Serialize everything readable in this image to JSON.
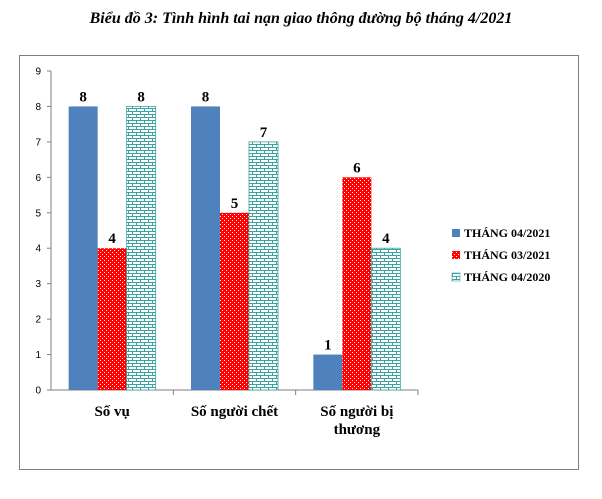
{
  "chart_data": {
    "type": "bar",
    "title": "Biểu đồ 3: Tình hình tai nạn giao thông đường bộ tháng 4/2021",
    "categories": [
      [
        "Số vụ"
      ],
      [
        "Số người chết"
      ],
      [
        "Số người bị",
        "thương"
      ]
    ],
    "series": [
      {
        "name": "THÁNG 04/2021",
        "values": [
          8,
          8,
          1
        ],
        "color": "#4f81bd",
        "pattern": "solid"
      },
      {
        "name": "THÁNG 03/2021",
        "values": [
          4,
          5,
          6
        ],
        "color": "#ff0000",
        "pattern": "dots"
      },
      {
        "name": "THÁNG 04/2020",
        "values": [
          8,
          7,
          4
        ],
        "color": "#4bacc6",
        "pattern": "brick"
      }
    ],
    "ylim": [
      0,
      9
    ],
    "yticks": [
      0,
      1,
      2,
      3,
      4,
      5,
      6,
      7,
      8,
      9
    ],
    "xlabel": "",
    "ylabel": "",
    "legend_position": "right",
    "grid": false
  }
}
